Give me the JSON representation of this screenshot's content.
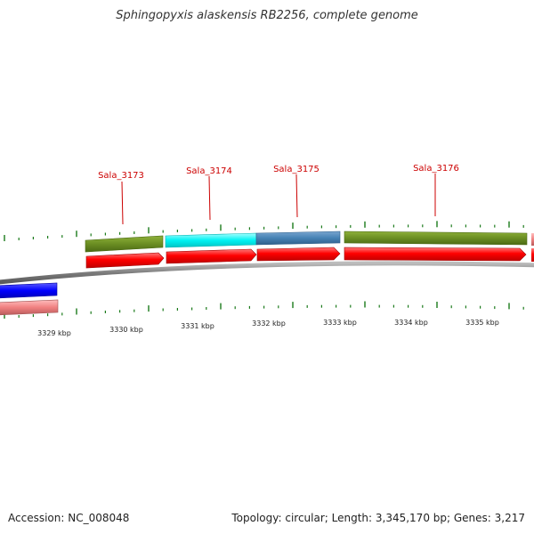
{
  "title": "Sphingopyxis alaskensis RB2256, complete genome",
  "footer": {
    "accession": "Accession: NC_008048",
    "summary": "Topology: circular; Length: 3,345,170 bp; Genes: 3,217"
  },
  "genome_map": {
    "scale_labels": [
      "3329 kbp",
      "3330 kbp",
      "3331 kbp",
      "3332 kbp",
      "3333 kbp",
      "3334 kbp",
      "3335 kbp"
    ],
    "gene_labels": [
      "Sala_3173",
      "Sala_3174",
      "Sala_3175",
      "Sala_3176"
    ],
    "colors": {
      "label": "#cc0000",
      "cds": "#ff0000",
      "cog_olive": "#6b8e23",
      "cog_cyan": "#00ffff",
      "cog_steelblue": "#4682b4",
      "cog_blue": "#0000ff",
      "cds_pink": "#f08080",
      "tick": "#1a7a1a",
      "backbone": "#888888"
    }
  }
}
